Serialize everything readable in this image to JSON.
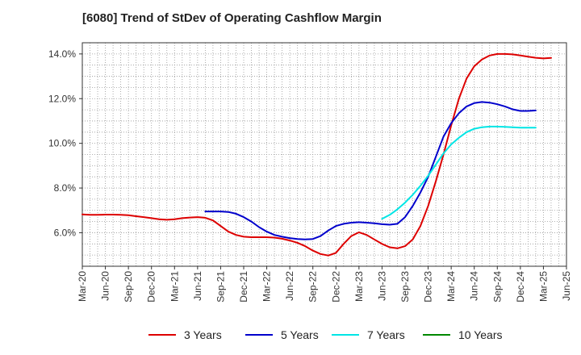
{
  "chart_data": {
    "type": "line",
    "title": "[6080]  Trend of StDev of Operating Cashflow Margin",
    "xlabel": "",
    "ylabel": "",
    "x_ticks": [
      "Mar-20",
      "Jun-20",
      "Sep-20",
      "Dec-20",
      "Mar-21",
      "Jun-21",
      "Sep-21",
      "Dec-21",
      "Mar-22",
      "Jun-22",
      "Sep-22",
      "Dec-22",
      "Mar-23",
      "Jun-23",
      "Sep-23",
      "Dec-23",
      "Mar-24",
      "Jun-24",
      "Sep-24",
      "Dec-24",
      "Mar-25",
      "Jun-25"
    ],
    "y_ticks": [
      "6.0%",
      "8.0%",
      "10.0%",
      "12.0%",
      "14.0%"
    ],
    "y_tick_values": [
      6,
      8,
      10,
      12,
      14
    ],
    "ylim": [
      4.5,
      14.5
    ],
    "grid": true,
    "legend_position": "bottom",
    "series": [
      {
        "name": "3 Years",
        "color": "#dd0000",
        "start_index": 0,
        "values": [
          6.82,
          6.8,
          6.8,
          6.81,
          6.81,
          6.8,
          6.78,
          6.74,
          6.7,
          6.65,
          6.6,
          6.58,
          6.6,
          6.65,
          6.68,
          6.7,
          6.67,
          6.55,
          6.3,
          6.05,
          5.9,
          5.82,
          5.8,
          5.8,
          5.8,
          5.78,
          5.73,
          5.65,
          5.55,
          5.4,
          5.2,
          5.05,
          4.98,
          5.1,
          5.5,
          5.85,
          6.02,
          5.9,
          5.7,
          5.5,
          5.35,
          5.3,
          5.4,
          5.7,
          6.3,
          7.2,
          8.3,
          9.5,
          10.8,
          12.0,
          12.9,
          13.45,
          13.75,
          13.93,
          14.0,
          14.0,
          13.98,
          13.93,
          13.88,
          13.83,
          13.8,
          13.82
        ]
      },
      {
        "name": "5 Years",
        "color": "#0000cc",
        "start_index": 16,
        "values": [
          6.95,
          6.95,
          6.95,
          6.93,
          6.85,
          6.7,
          6.5,
          6.25,
          6.05,
          5.9,
          5.82,
          5.76,
          5.72,
          5.7,
          5.72,
          5.85,
          6.1,
          6.3,
          6.4,
          6.45,
          6.47,
          6.45,
          6.42,
          6.38,
          6.36,
          6.4,
          6.7,
          7.2,
          7.8,
          8.5,
          9.4,
          10.3,
          10.9,
          11.35,
          11.65,
          11.8,
          11.85,
          11.82,
          11.75,
          11.65,
          11.52,
          11.45,
          11.45,
          11.47
        ]
      },
      {
        "name": "7 Years",
        "color": "#00e5e5",
        "start_index": 39,
        "values": [
          6.62,
          6.8,
          7.05,
          7.35,
          7.7,
          8.1,
          8.55,
          9.05,
          9.55,
          9.95,
          10.25,
          10.5,
          10.65,
          10.72,
          10.75,
          10.75,
          10.74,
          10.72,
          10.7,
          10.7,
          10.7
        ]
      },
      {
        "name": "10 Years",
        "color": "#008800",
        "start_index": 0,
        "values": []
      }
    ]
  }
}
